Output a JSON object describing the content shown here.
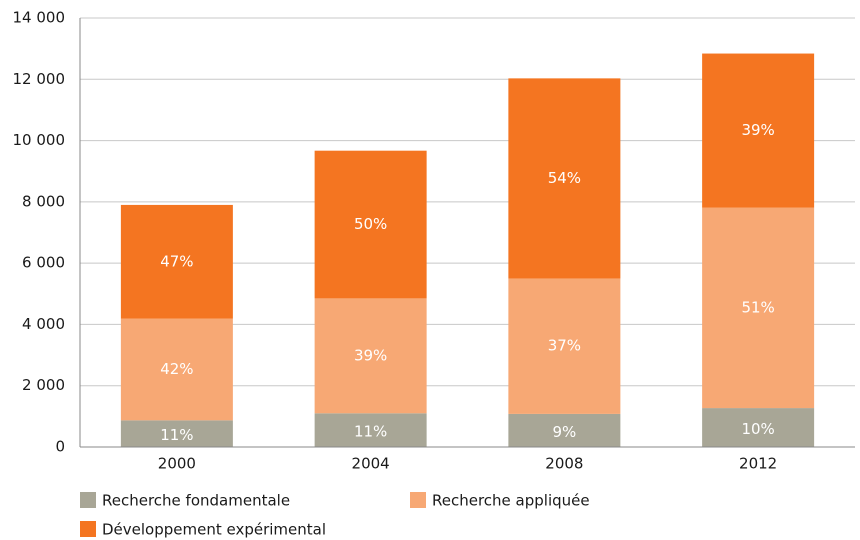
{
  "chart_data": {
    "type": "stacked_bar",
    "categories": [
      "2000",
      "2004",
      "2008",
      "2012"
    ],
    "series": [
      {
        "name": "Recherche fondamentale",
        "color": "#a8a696",
        "values": [
          870,
          1100,
          1080,
          1270
        ],
        "percent_labels": [
          "11%",
          "11%",
          "9%",
          "10%"
        ]
      },
      {
        "name": "Recherche appliquée",
        "color": "#f7a874",
        "values": [
          3320,
          3750,
          4420,
          6540
        ],
        "percent_labels": [
          "42%",
          "39%",
          "37%",
          "51%"
        ]
      },
      {
        "name": "Développement expérimental",
        "color": "#f47521",
        "values": [
          3710,
          4820,
          6530,
          5030
        ],
        "percent_labels": [
          "47%",
          "50%",
          "54%",
          "39%"
        ]
      }
    ],
    "ylim": [
      0,
      14000
    ],
    "yticks": [
      0,
      {
        "value": 2000,
        "label": "2 000"
      },
      {
        "value": 4000,
        "label": "4 000"
      },
      {
        "value": 6000,
        "label": "6 000"
      },
      {
        "value": 8000,
        "label": "8 000"
      },
      {
        "value": 10000,
        "label": "10 000"
      },
      {
        "value": 12000,
        "label": "12 000"
      },
      {
        "value": 14000,
        "label": "14 000"
      }
    ],
    "grid": true
  }
}
